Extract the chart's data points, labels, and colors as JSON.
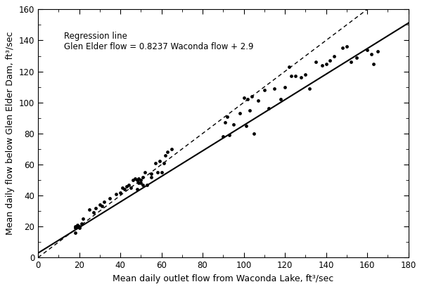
{
  "scatter_x": [
    18,
    18,
    18,
    19,
    19,
    20,
    20,
    21,
    22,
    25,
    27,
    28,
    30,
    31,
    32,
    35,
    38,
    40,
    41,
    42,
    43,
    44,
    45,
    46,
    47,
    48,
    48,
    49,
    49,
    50,
    50,
    51,
    51,
    52,
    53,
    55,
    55,
    57,
    58,
    59,
    60,
    61,
    62,
    63,
    65,
    90,
    91,
    92,
    93,
    95,
    98,
    100,
    101,
    102,
    103,
    104,
    105,
    107,
    110,
    112,
    115,
    118,
    120,
    122,
    123,
    125,
    128,
    130,
    132,
    135,
    138,
    140,
    142,
    144,
    148,
    150,
    152,
    155,
    160,
    162,
    163,
    165
  ],
  "scatter_y": [
    16,
    19,
    20,
    20,
    21,
    19,
    20,
    22,
    25,
    31,
    29,
    32,
    34,
    33,
    36,
    38,
    41,
    42,
    45,
    44,
    46,
    47,
    45,
    50,
    51,
    50,
    44,
    48,
    51,
    48,
    50,
    47,
    52,
    55,
    47,
    52,
    54,
    61,
    55,
    62,
    55,
    61,
    66,
    68,
    70,
    78,
    87,
    91,
    79,
    86,
    93,
    103,
    85,
    102,
    95,
    104,
    80,
    101,
    108,
    96,
    109,
    102,
    110,
    123,
    117,
    117,
    116,
    118,
    109,
    126,
    124,
    125,
    127,
    130,
    135,
    136,
    126,
    129,
    134,
    131,
    125,
    133
  ],
  "regression_slope": 0.8237,
  "regression_intercept": 2.9,
  "annotation_line1": "Regression line",
  "annotation_line2": "Glen Elder flow = 0.8237 Waconda flow + 2.9",
  "xlim": [
    0,
    180
  ],
  "ylim": [
    0,
    160
  ],
  "xticks": [
    0,
    20,
    40,
    60,
    80,
    100,
    120,
    140,
    160,
    180
  ],
  "yticks": [
    0,
    20,
    40,
    60,
    80,
    100,
    120,
    140,
    160
  ],
  "xlabel": "Mean daily outlet flow from Waconda Lake, ft³/sec",
  "ylabel": "Mean daily flow below Glen Elder Dam, ft³/sec",
  "background_color": "#ffffff",
  "scatter_color": "#000000",
  "regression_line_color": "#000000",
  "oneto1_line_color": "#000000",
  "scatter_size": 12
}
